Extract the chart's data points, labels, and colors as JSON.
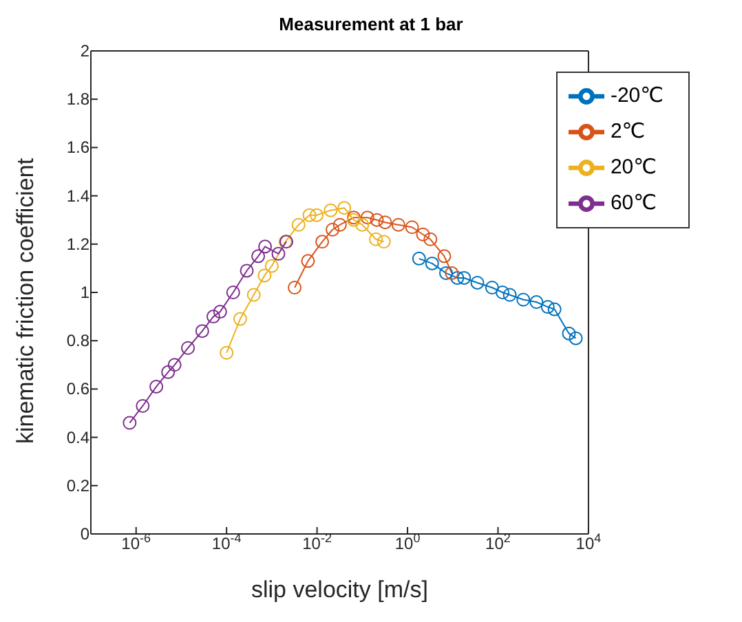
{
  "chart_data": {
    "type": "line",
    "title": "Measurement at 1 bar",
    "xlabel": "slip velocity [m/s]",
    "ylabel": "kinematic friction coefficient",
    "log": "x",
    "xlim": [
      1e-07,
      10000
    ],
    "ylim": [
      0,
      2
    ],
    "xticks": [
      {
        "value": 1e-06,
        "label": "10$^{-6}$"
      },
      {
        "value": 0.0001,
        "label": "10$^{-4}$"
      },
      {
        "value": 0.01,
        "label": "10$^{-2}$"
      },
      {
        "value": 1,
        "label": "10$^{0}$"
      },
      {
        "value": 100,
        "label": "10$^{2}$"
      },
      {
        "value": 10000,
        "label": "10$^{4}$"
      }
    ],
    "yticks": [
      0,
      0.2,
      0.4,
      0.6,
      0.8,
      1,
      1.2,
      1.4,
      1.6,
      1.8,
      2
    ],
    "grid": false,
    "legend": "top right",
    "marker": "circle",
    "line_style": "solid",
    "series": [
      {
        "name": "-20℃",
        "color": "#0072bd",
        "x": [
          1.8,
          3.5,
          7.1,
          12.6,
          17.8,
          35,
          74,
          126,
          182,
          363,
          708,
          1260,
          1780,
          3700,
          5250
        ],
        "values": [
          1.14,
          1.12,
          1.08,
          1.06,
          1.06,
          1.04,
          1.02,
          1.0,
          0.99,
          0.97,
          0.96,
          0.94,
          0.93,
          0.83,
          0.81
        ]
      },
      {
        "name": "2℃",
        "color": "#d95319",
        "x": [
          0.0032,
          0.0063,
          0.013,
          0.022,
          0.032,
          0.065,
          0.13,
          0.21,
          0.32,
          0.63,
          1.26,
          2.2,
          3.2,
          6.5,
          9.5
        ],
        "values": [
          1.02,
          1.13,
          1.21,
          1.26,
          1.28,
          1.31,
          1.31,
          1.3,
          1.29,
          1.28,
          1.27,
          1.24,
          1.22,
          1.15,
          1.08
        ]
      },
      {
        "name": "20℃",
        "color": "#edb120",
        "x": [
          0.0001,
          0.0002,
          0.0004,
          0.00069,
          0.001,
          0.002,
          0.0039,
          0.0068,
          0.0098,
          0.02,
          0.04,
          0.065,
          0.1,
          0.2,
          0.3
        ],
        "values": [
          0.75,
          0.89,
          0.99,
          1.07,
          1.11,
          1.21,
          1.28,
          1.32,
          1.32,
          1.34,
          1.35,
          1.3,
          1.28,
          1.22,
          1.21
        ]
      },
      {
        "name": "60℃",
        "color": "#7e2f8e",
        "x": [
          7.2e-07,
          1.4e-06,
          2.8e-06,
          5.1e-06,
          7.1e-06,
          1.4e-05,
          2.9e-05,
          5.1e-05,
          7.2e-05,
          0.00014,
          0.00028,
          0.0005,
          0.00071,
          0.0014,
          0.0021
        ],
        "values": [
          0.46,
          0.53,
          0.61,
          0.67,
          0.7,
          0.77,
          0.84,
          0.9,
          0.92,
          1.0,
          1.09,
          1.15,
          1.19,
          1.16,
          1.21
        ]
      }
    ]
  }
}
